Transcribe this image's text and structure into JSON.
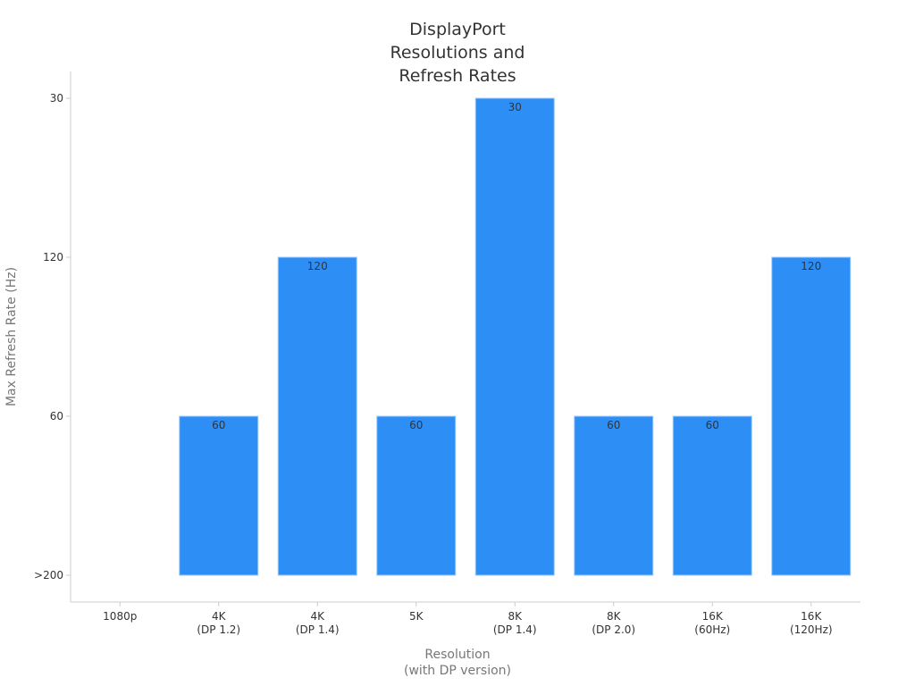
{
  "chart_data": {
    "type": "bar",
    "title": "DisplayPort Resolutions and Refresh Rates",
    "x_label": "Resolution\n(with DP version)",
    "y_label": "Max Refresh Rate (Hz)",
    "categories": [
      "1080p",
      "4K\n(DP 1.2)",
      "4K\n(DP 1.4)",
      "5K",
      "8K\n(DP 1.4)",
      "8K\n(DP 2.0)",
      "16K\n(60Hz)",
      "16K\n(120Hz)"
    ],
    "values": [
      null,
      60,
      120,
      60,
      30,
      60,
      60,
      120
    ],
    "y_categories": [
      ">200",
      60,
      120,
      30
    ],
    "color": "#2d8ff6"
  }
}
